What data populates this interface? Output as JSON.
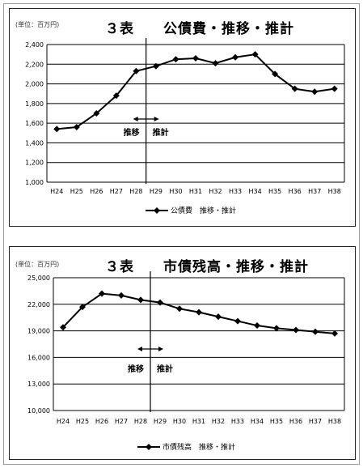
{
  "chart_data": [
    {
      "type": "line",
      "unit_label": "(単位：百万円)",
      "title": "３表　　公債費・推移・推計",
      "categories": [
        "H24",
        "H25",
        "H26",
        "H27",
        "H28",
        "H29",
        "H30",
        "H31",
        "H32",
        "H33",
        "H34",
        "H35",
        "H36",
        "H37",
        "H38"
      ],
      "series": [
        {
          "name": "公債費　推移・推計",
          "values": [
            1540,
            1560,
            1700,
            1880,
            2130,
            2180,
            2250,
            2260,
            2210,
            2270,
            2300,
            2100,
            1950,
            1920,
            1950
          ]
        }
      ],
      "ylim": [
        1000,
        2400
      ],
      "yticks": [
        1000,
        1200,
        1400,
        1600,
        1800,
        2000,
        2200,
        2400
      ],
      "ytick_labels": [
        "1,000",
        "1,200",
        "1,400",
        "1,600",
        "1,800",
        "2,000",
        "2,200",
        "2,400"
      ],
      "divider_after_category": "H28",
      "annotations": {
        "left": "推移",
        "right": "推計"
      },
      "grid": true,
      "legend_position": "bottom",
      "color": "#000000"
    },
    {
      "type": "line",
      "unit_label": "(単位：百万円)",
      "title": "３表　　市債残高・推移・推計",
      "categories": [
        "H24",
        "H25",
        "H26",
        "H27",
        "H28",
        "H29",
        "H30",
        "H31",
        "H32",
        "H33",
        "H34",
        "H35",
        "H36",
        "H37",
        "H38"
      ],
      "series": [
        {
          "name": "市債残高　推移・推計",
          "values": [
            19400,
            21700,
            23200,
            23000,
            22500,
            22200,
            21500,
            21100,
            20600,
            20100,
            19600,
            19300,
            19100,
            18900,
            18700
          ]
        }
      ],
      "ylim": [
        10000,
        25000
      ],
      "yticks": [
        10000,
        13000,
        16000,
        19000,
        22000,
        25000
      ],
      "ytick_labels": [
        "10,000",
        "13,000",
        "16,000",
        "19,000",
        "22,000",
        "25,000"
      ],
      "divider_after_category": "H28",
      "annotations": {
        "left": "推移",
        "right": "推計"
      },
      "grid": true,
      "legend_position": "bottom",
      "color": "#000000"
    }
  ]
}
